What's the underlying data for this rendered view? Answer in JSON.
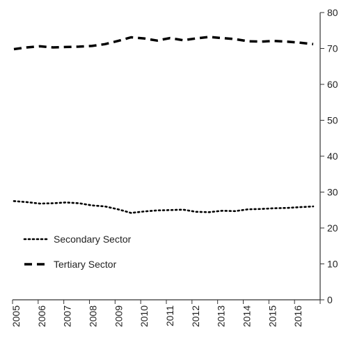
{
  "chart_data": {
    "type": "line",
    "title": "",
    "xlabel": "",
    "ylabel": "",
    "ylim": [
      0,
      80
    ],
    "y_axis_side": "right",
    "y_ticks": [
      "0",
      "10",
      "20",
      "30",
      "40",
      "50",
      "60",
      "70",
      "80"
    ],
    "x_ticks": [
      "2005",
      "2006",
      "2007",
      "2008",
      "2009",
      "2010",
      "2011",
      "2012",
      "2013",
      "2014",
      "2015",
      "2016"
    ],
    "x": [
      2005,
      2005.5,
      2006,
      2006.5,
      2007,
      2007.5,
      2008,
      2008.5,
      2009,
      2009.5,
      2010,
      2010.5,
      2011,
      2011.5,
      2012,
      2012.5,
      2013,
      2013.5,
      2014,
      2014.5,
      2015,
      2015.5,
      2016,
      2016.5
    ],
    "series": [
      {
        "name": "Secondary Sector",
        "style": "dotted",
        "color": "#000000",
        "values": [
          27.5,
          27.2,
          26.8,
          26.9,
          27.1,
          26.9,
          26.3,
          26.0,
          25.2,
          24.2,
          24.6,
          24.9,
          25.0,
          25.1,
          24.5,
          24.4,
          24.8,
          24.7,
          25.2,
          25.3,
          25.5,
          25.6,
          25.8,
          26.0
        ]
      },
      {
        "name": "Tertiary Sector",
        "style": "dashed",
        "color": "#000000",
        "values": [
          69.8,
          70.3,
          70.6,
          70.3,
          70.4,
          70.5,
          70.7,
          71.2,
          72.1,
          73.1,
          72.8,
          72.2,
          72.9,
          72.3,
          72.8,
          73.2,
          72.9,
          72.6,
          72.0,
          71.9,
          72.1,
          71.9,
          71.6,
          71.2
        ]
      }
    ],
    "legend": {
      "placement": "bottom-left",
      "entries": [
        "Secondary Sector",
        "Tertiary Sector"
      ]
    },
    "grid": false
  }
}
